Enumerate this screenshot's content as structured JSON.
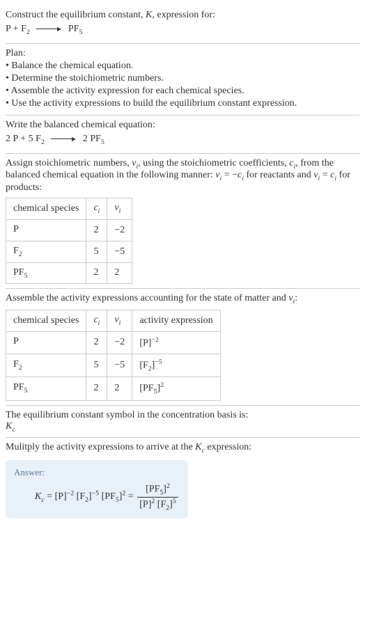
{
  "header": {
    "prompt_prefix": "Construct the equilibrium constant, ",
    "prompt_K": "K",
    "prompt_suffix": ", expression for:",
    "eq_lhs_1": "P + F",
    "eq_lhs_1_sub": "2",
    "eq_rhs_1": "PF",
    "eq_rhs_1_sub": "5"
  },
  "plan": {
    "title": "Plan:",
    "items": [
      "Balance the chemical equation.",
      "Determine the stoichiometric numbers.",
      "Assemble the activity expression for each chemical species.",
      "Use the activity expressions to build the equilibrium constant expression."
    ]
  },
  "balanced": {
    "title": "Write the balanced chemical equation:",
    "c1": "2 P + 5 F",
    "c1_sub": "2",
    "c2": "2 PF",
    "c2_sub": "5"
  },
  "stoich": {
    "intro_1": "Assign stoichiometric numbers, ",
    "nu_i": "ν",
    "nu_i_sub": "i",
    "intro_2": ", using the stoichiometric coefficients, ",
    "c_i": "c",
    "c_i_sub": "i",
    "intro_3": ", from the balanced chemical equation in the following manner: ",
    "rule1_a": "ν",
    "rule1_a_sub": "i",
    "rule1_eq": " = −",
    "rule1_b": "c",
    "rule1_b_sub": "i",
    "rule1_tail": " for reactants and ",
    "rule2_a": "ν",
    "rule2_a_sub": "i",
    "rule2_eq": " = ",
    "rule2_b": "c",
    "rule2_b_sub": "i",
    "rule2_tail": " for products:",
    "cols": {
      "species": "chemical species",
      "ci": "c",
      "ci_sub": "i",
      "nui": "ν",
      "nui_sub": "i"
    },
    "rows": [
      {
        "species": "P",
        "species_sub": "",
        "ci": "2",
        "nui": "−2"
      },
      {
        "species": "F",
        "species_sub": "2",
        "ci": "5",
        "nui": "−5"
      },
      {
        "species": "PF",
        "species_sub": "5",
        "ci": "2",
        "nui": "2"
      }
    ]
  },
  "activity": {
    "intro_1": "Assemble the activity expressions accounting for the state of matter and ",
    "nu": "ν",
    "nu_sub": "i",
    "intro_2": ":",
    "cols": {
      "species": "chemical species",
      "ci": "c",
      "ci_sub": "i",
      "nui": "ν",
      "nui_sub": "i",
      "act": "activity expression"
    },
    "rows": [
      {
        "species": "P",
        "species_sub": "",
        "ci": "2",
        "nui": "−2",
        "base": "[P]",
        "exp": "−2"
      },
      {
        "species": "F",
        "species_sub": "2",
        "ci": "5",
        "nui": "−5",
        "base": "[F",
        "base_sub": "2",
        "base_close": "]",
        "exp": "−5"
      },
      {
        "species": "PF",
        "species_sub": "5",
        "ci": "2",
        "nui": "2",
        "base": "[PF",
        "base_sub": "5",
        "base_close": "]",
        "exp": "2"
      }
    ]
  },
  "symbol": {
    "line1": "The equilibrium constant symbol in the concentration basis is:",
    "K": "K",
    "K_sub": "c"
  },
  "multiply": {
    "line_a": "Mulitply the activity expressions to arrive at the ",
    "K": "K",
    "K_sub": "c",
    "line_b": " expression:"
  },
  "answer": {
    "label": "Answer:",
    "K": "K",
    "K_sub": "c",
    "eq": " = ",
    "t1": "[P]",
    "t1_exp": "−2",
    "t2": "[F",
    "t2_sub": "2",
    "t2_close": "]",
    "t2_exp": "−5",
    "t3": "[PF",
    "t3_sub": "5",
    "t3_close": "]",
    "t3_exp": "2",
    "eq2": " = ",
    "num": "[PF",
    "num_sub": "5",
    "num_close": "]",
    "num_exp": "2",
    "den1": "[P]",
    "den1_exp": "2",
    "den2": "[F",
    "den2_sub": "2",
    "den2_close": "]",
    "den2_exp": "5"
  }
}
